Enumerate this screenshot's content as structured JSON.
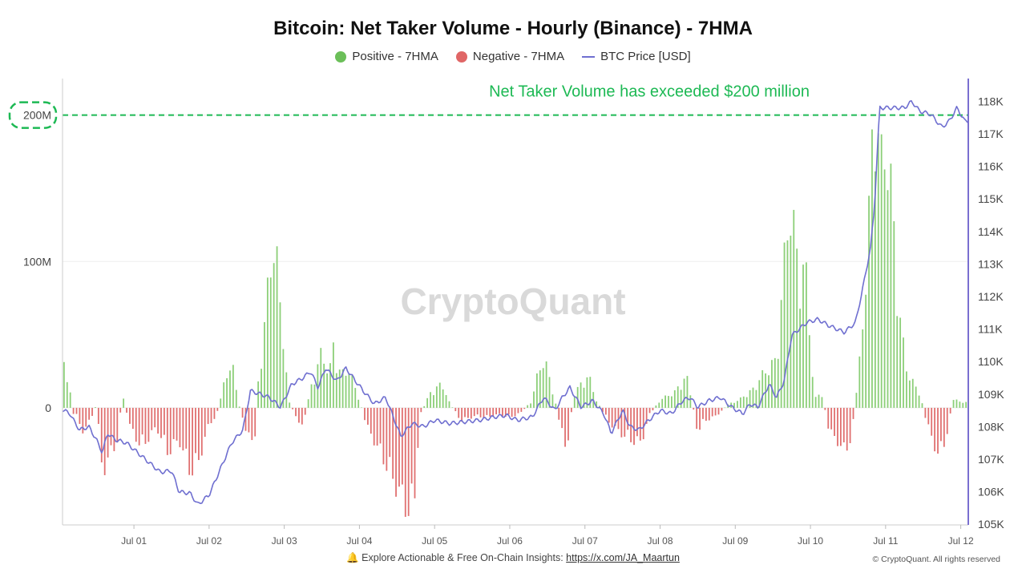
{
  "chart_data": {
    "type": "bar",
    "title": "Bitcoin: Net Taker Volume - Hourly (Binance) - 7HMA",
    "watermark": "CryptoQuant",
    "legend": [
      {
        "name": "Positive - 7HMA",
        "color": "#6bbf59"
      },
      {
        "name": "Negative - 7HMA",
        "color": "#e06666"
      },
      {
        "name": "BTC Price [USD]",
        "color": "#6f6fd0"
      }
    ],
    "x_ticks": [
      "Jul 01",
      "Jul 02",
      "Jul 03",
      "Jul 04",
      "Jul 05",
      "Jul 06",
      "Jul 07",
      "Jul 08",
      "Jul 09",
      "Jul 10",
      "Jul 11",
      "Jul 12"
    ],
    "x_range_days": [
      -0.95,
      11.1
    ],
    "left_axis": {
      "ticks": [
        "0",
        "100M",
        "200M"
      ],
      "tick_values": [
        0,
        100000000,
        200000000
      ],
      "range": [
        -80000000,
        225000000
      ]
    },
    "right_axis": {
      "ticks": [
        "105K",
        "106K",
        "107K",
        "108K",
        "109K",
        "110K",
        "111K",
        "112K",
        "113K",
        "114K",
        "115K",
        "116K",
        "117K",
        "118K"
      ],
      "tick_values": [
        105000,
        106000,
        107000,
        108000,
        109000,
        110000,
        111000,
        112000,
        113000,
        114000,
        115000,
        116000,
        117000,
        118000
      ],
      "range": [
        104980,
        118700
      ]
    },
    "threshold": {
      "value": 200000000,
      "label": "Net Taker Volume has exceeded $200 million",
      "color": "#1db954"
    },
    "volume_keypoints": [
      [
        -0.95,
        0
      ],
      [
        -0.93,
        28000000
      ],
      [
        -0.9,
        25000000
      ],
      [
        -0.86,
        15000000
      ],
      [
        -0.82,
        -3000000
      ],
      [
        -0.75,
        -5000000
      ],
      [
        -0.7,
        -15000000
      ],
      [
        -0.6,
        -10000000
      ],
      [
        -0.5,
        2000000
      ],
      [
        -0.42,
        -40000000
      ],
      [
        -0.32,
        -30000000
      ],
      [
        -0.22,
        -20000000
      ],
      [
        -0.15,
        8000000
      ],
      [
        -0.05,
        -12000000
      ],
      [
        0.1,
        -25000000
      ],
      [
        0.3,
        -12000000
      ],
      [
        0.45,
        -28000000
      ],
      [
        0.6,
        -20000000
      ],
      [
        0.75,
        -40000000
      ],
      [
        0.85,
        -35000000
      ],
      [
        1.0,
        -10000000
      ],
      [
        1.1,
        -5000000
      ],
      [
        1.2,
        15000000
      ],
      [
        1.3,
        30000000
      ],
      [
        1.38,
        5000000
      ],
      [
        1.5,
        -15000000
      ],
      [
        1.6,
        -25000000
      ],
      [
        1.65,
        15000000
      ],
      [
        1.75,
        55000000
      ],
      [
        1.82,
        100000000
      ],
      [
        1.9,
        90000000
      ],
      [
        2.0,
        40000000
      ],
      [
        2.05,
        5000000
      ],
      [
        2.15,
        -5000000
      ],
      [
        2.25,
        -12000000
      ],
      [
        2.35,
        12000000
      ],
      [
        2.5,
        35000000
      ],
      [
        2.6,
        20000000
      ],
      [
        2.65,
        40000000
      ],
      [
        2.75,
        20000000
      ],
      [
        2.85,
        25000000
      ],
      [
        3.0,
        5000000
      ],
      [
        3.1,
        -12000000
      ],
      [
        3.3,
        -30000000
      ],
      [
        3.45,
        -45000000
      ],
      [
        3.6,
        -60000000
      ],
      [
        3.72,
        -68000000
      ],
      [
        3.8,
        -5000000
      ],
      [
        3.95,
        10000000
      ],
      [
        4.1,
        15000000
      ],
      [
        4.2,
        3000000
      ],
      [
        4.35,
        -8000000
      ],
      [
        4.55,
        -5000000
      ],
      [
        4.7,
        -6000000
      ],
      [
        4.85,
        -4000000
      ],
      [
        5.0,
        -6000000
      ],
      [
        5.15,
        -3000000
      ],
      [
        5.3,
        5000000
      ],
      [
        5.4,
        28000000
      ],
      [
        5.5,
        25000000
      ],
      [
        5.6,
        5000000
      ],
      [
        5.75,
        -28000000
      ],
      [
        5.85,
        8000000
      ],
      [
        5.95,
        15000000
      ],
      [
        6.05,
        20000000
      ],
      [
        6.15,
        5000000
      ],
      [
        6.3,
        -8000000
      ],
      [
        6.45,
        -15000000
      ],
      [
        6.6,
        -20000000
      ],
      [
        6.75,
        -22000000
      ],
      [
        6.85,
        -5000000
      ],
      [
        7.0,
        5000000
      ],
      [
        7.2,
        10000000
      ],
      [
        7.35,
        20000000
      ],
      [
        7.42,
        5000000
      ],
      [
        7.5,
        -15000000
      ],
      [
        7.6,
        -8000000
      ],
      [
        7.75,
        -5000000
      ],
      [
        7.9,
        2000000
      ],
      [
        8.05,
        5000000
      ],
      [
        8.25,
        12000000
      ],
      [
        8.35,
        20000000
      ],
      [
        8.55,
        30000000
      ],
      [
        8.72,
        130000000
      ],
      [
        8.82,
        95000000
      ],
      [
        8.95,
        80000000
      ],
      [
        9.05,
        5000000
      ],
      [
        9.15,
        10000000
      ],
      [
        9.25,
        -15000000
      ],
      [
        9.35,
        -20000000
      ],
      [
        9.45,
        -28000000
      ],
      [
        9.55,
        -18000000
      ],
      [
        9.68,
        40000000
      ],
      [
        9.78,
        120000000
      ],
      [
        9.86,
        205000000
      ],
      [
        9.93,
        145000000
      ],
      [
        10.0,
        170000000
      ],
      [
        10.1,
        120000000
      ],
      [
        10.2,
        50000000
      ],
      [
        10.3,
        20000000
      ],
      [
        10.45,
        10000000
      ],
      [
        10.55,
        -10000000
      ],
      [
        10.7,
        -30000000
      ],
      [
        10.8,
        -20000000
      ],
      [
        10.9,
        5000000
      ],
      [
        11.0,
        4000000
      ],
      [
        11.1,
        3000000
      ]
    ],
    "price_keypoints": [
      [
        -0.95,
        108520
      ],
      [
        -0.85,
        108400
      ],
      [
        -0.78,
        108100
      ],
      [
        -0.72,
        107900
      ],
      [
        -0.6,
        108000
      ],
      [
        -0.5,
        107600
      ],
      [
        -0.42,
        107200
      ],
      [
        -0.35,
        107800
      ],
      [
        -0.25,
        107600
      ],
      [
        -0.1,
        107500
      ],
      [
        0.0,
        107300
      ],
      [
        0.15,
        107000
      ],
      [
        0.35,
        106600
      ],
      [
        0.5,
        106650
      ],
      [
        0.6,
        106000
      ],
      [
        0.75,
        105950
      ],
      [
        0.85,
        105600
      ],
      [
        1.0,
        105900
      ],
      [
        1.15,
        106700
      ],
      [
        1.3,
        107500
      ],
      [
        1.45,
        107900
      ],
      [
        1.55,
        109100
      ],
      [
        1.68,
        109000
      ],
      [
        1.8,
        108900
      ],
      [
        1.95,
        108600
      ],
      [
        2.1,
        109300
      ],
      [
        2.25,
        109500
      ],
      [
        2.35,
        109700
      ],
      [
        2.45,
        109200
      ],
      [
        2.55,
        109800
      ],
      [
        2.7,
        109400
      ],
      [
        2.82,
        109800
      ],
      [
        2.95,
        109400
      ],
      [
        3.05,
        109100
      ],
      [
        3.2,
        108700
      ],
      [
        3.35,
        108900
      ],
      [
        3.45,
        108300
      ],
      [
        3.55,
        107700
      ],
      [
        3.7,
        108100
      ],
      [
        3.85,
        108000
      ],
      [
        4.0,
        108200
      ],
      [
        4.2,
        108100
      ],
      [
        4.4,
        108150
      ],
      [
        4.6,
        108200
      ],
      [
        4.8,
        108300
      ],
      [
        4.95,
        108350
      ],
      [
        5.1,
        108200
      ],
      [
        5.3,
        108300
      ],
      [
        5.45,
        108900
      ],
      [
        5.6,
        108500
      ],
      [
        5.7,
        108900
      ],
      [
        5.8,
        109200
      ],
      [
        5.95,
        108600
      ],
      [
        6.1,
        108800
      ],
      [
        6.25,
        108400
      ],
      [
        6.35,
        107800
      ],
      [
        6.5,
        108500
      ],
      [
        6.6,
        108000
      ],
      [
        6.72,
        107900
      ],
      [
        6.85,
        108200
      ],
      [
        7.0,
        108500
      ],
      [
        7.15,
        108400
      ],
      [
        7.3,
        108800
      ],
      [
        7.4,
        108900
      ],
      [
        7.5,
        108600
      ],
      [
        7.65,
        108800
      ],
      [
        7.8,
        108900
      ],
      [
        7.95,
        108600
      ],
      [
        8.1,
        108400
      ],
      [
        8.2,
        108700
      ],
      [
        8.3,
        108600
      ],
      [
        8.45,
        109300
      ],
      [
        8.55,
        108900
      ],
      [
        8.65,
        109400
      ],
      [
        8.75,
        110800
      ],
      [
        8.85,
        111000
      ],
      [
        8.95,
        111200
      ],
      [
        9.1,
        111300
      ],
      [
        9.25,
        111100
      ],
      [
        9.45,
        110900
      ],
      [
        9.6,
        111200
      ],
      [
        9.7,
        112300
      ],
      [
        9.8,
        113500
      ],
      [
        9.85,
        114700
      ],
      [
        9.92,
        117800
      ],
      [
        10.1,
        117800
      ],
      [
        10.25,
        117800
      ],
      [
        10.35,
        118000
      ],
      [
        10.45,
        117700
      ],
      [
        10.6,
        117600
      ],
      [
        10.75,
        117200
      ],
      [
        10.85,
        117400
      ],
      [
        10.95,
        117800
      ],
      [
        11.05,
        117400
      ],
      [
        11.1,
        117400
      ]
    ]
  },
  "footer": {
    "text": "Explore Actionable & Free On-Chain Insights:",
    "link": "https://x.com/JA_Maartun",
    "copyright": "© CryptoQuant. All rights reserved"
  }
}
